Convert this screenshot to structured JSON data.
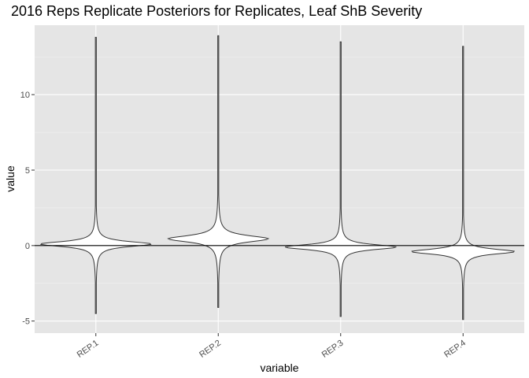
{
  "chart_data": {
    "type": "violin",
    "title": "2016 Reps Replicate Posteriors for Replicates, Leaf ShB Severity",
    "xlabel": "variable",
    "ylabel": "value",
    "ylim": [
      -5.8,
      14.6
    ],
    "yticks": [
      -5,
      0,
      5,
      10
    ],
    "ytick_labels": [
      "-5",
      "0",
      "5",
      "10"
    ],
    "grid": true,
    "hline": 0,
    "categories": [
      "REP.1",
      "REP.2",
      "REP.3",
      "REP.4"
    ],
    "series": [
      {
        "category": "REP.1",
        "min": -4.5,
        "max": 13.8,
        "mode": 0.1,
        "peak_half_width_frac": 1.0,
        "spread": 0.22
      },
      {
        "category": "REP.2",
        "min": -4.1,
        "max": 13.9,
        "mode": 0.45,
        "peak_half_width_frac": 0.9,
        "spread": 0.28
      },
      {
        "category": "REP.3",
        "min": -4.7,
        "max": 13.5,
        "mode": -0.1,
        "peak_half_width_frac": 1.0,
        "spread": 0.22
      },
      {
        "category": "REP.4",
        "min": -4.9,
        "max": 13.2,
        "mode": -0.4,
        "peak_half_width_frac": 0.93,
        "spread": 0.22
      }
    ]
  }
}
